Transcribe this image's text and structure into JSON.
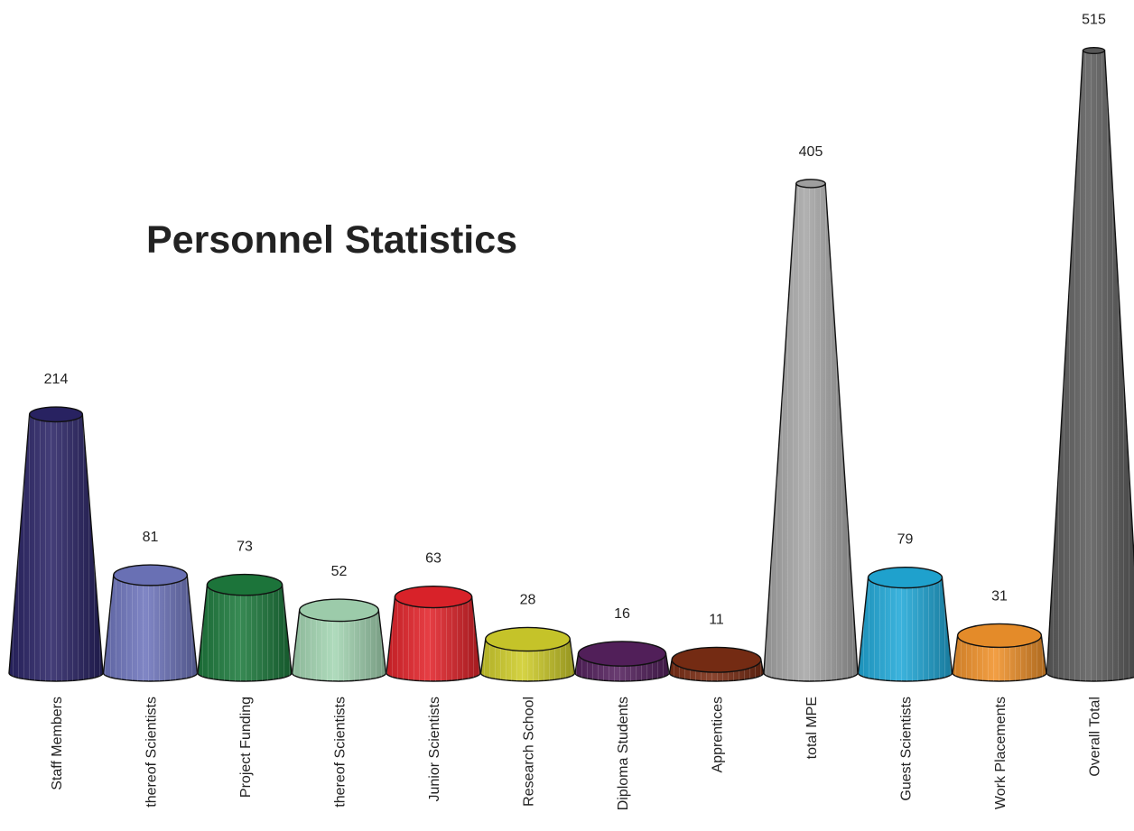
{
  "chart_data": {
    "type": "bar",
    "title": "Personnel Statistics",
    "xlabel": "",
    "ylabel": "",
    "ylim": [
      0,
      515
    ],
    "grid": false,
    "legend": "none",
    "categories": [
      "Staff Members",
      "thereof Scientists",
      "Project Funding",
      "thereof Scientists",
      "Junior Scientists",
      "Research School",
      "Diploma Students",
      "Apprentices",
      "total MPE",
      "Guest Scientists",
      "Work Placements",
      "Overall Total"
    ],
    "values": [
      214,
      81,
      73,
      52,
      63,
      28,
      16,
      11,
      405,
      79,
      31,
      515
    ],
    "colors": [
      "#2a2466",
      "#6f76bd",
      "#1d7a3d",
      "#a4d6b3",
      "#e3242b",
      "#cfcd2b",
      "#55215e",
      "#7a2d14",
      "#a6a6a6",
      "#21a9d8",
      "#f0922b",
      "#5c5c5c"
    ]
  }
}
